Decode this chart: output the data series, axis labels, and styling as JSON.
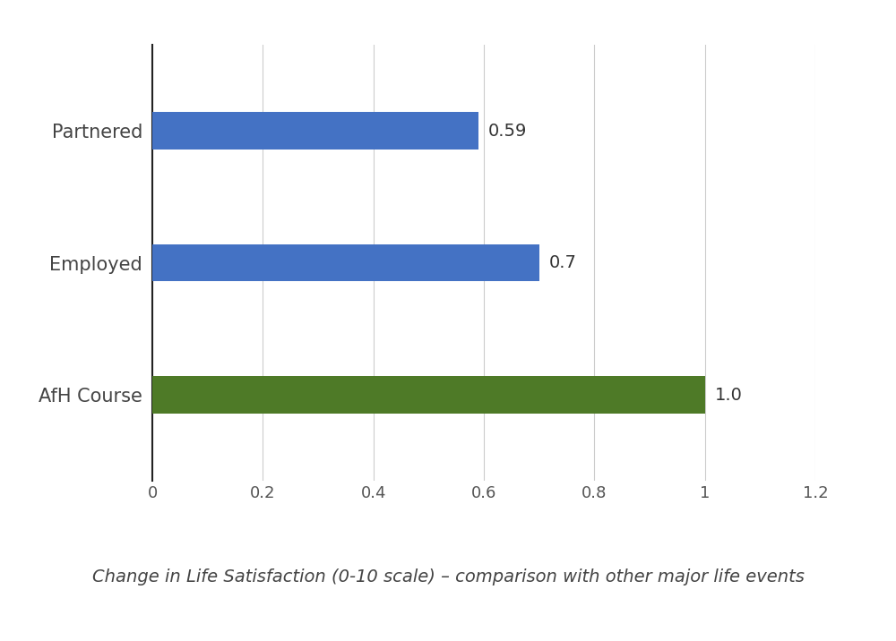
{
  "categories": [
    "AfH Course",
    "Employed",
    "Partnered"
  ],
  "values": [
    1.0,
    0.7,
    0.59
  ],
  "bar_colors": [
    "#4e7a27",
    "#4472c4",
    "#4472c4"
  ],
  "value_labels": [
    "1.0",
    "0.7",
    "0.59"
  ],
  "xlim": [
    0,
    1.2
  ],
  "xticks": [
    0,
    0.2,
    0.4,
    0.6,
    0.8,
    1.0,
    1.2
  ],
  "caption": "Change in Life Satisfaction (0-10 scale) – comparison with other major life events",
  "caption_fontsize": 14,
  "tick_fontsize": 13,
  "label_fontsize": 15,
  "value_fontsize": 14,
  "bar_height": 0.28,
  "background_color": "#ffffff",
  "grid_color": "#cccccc",
  "spine_color": "#222222"
}
